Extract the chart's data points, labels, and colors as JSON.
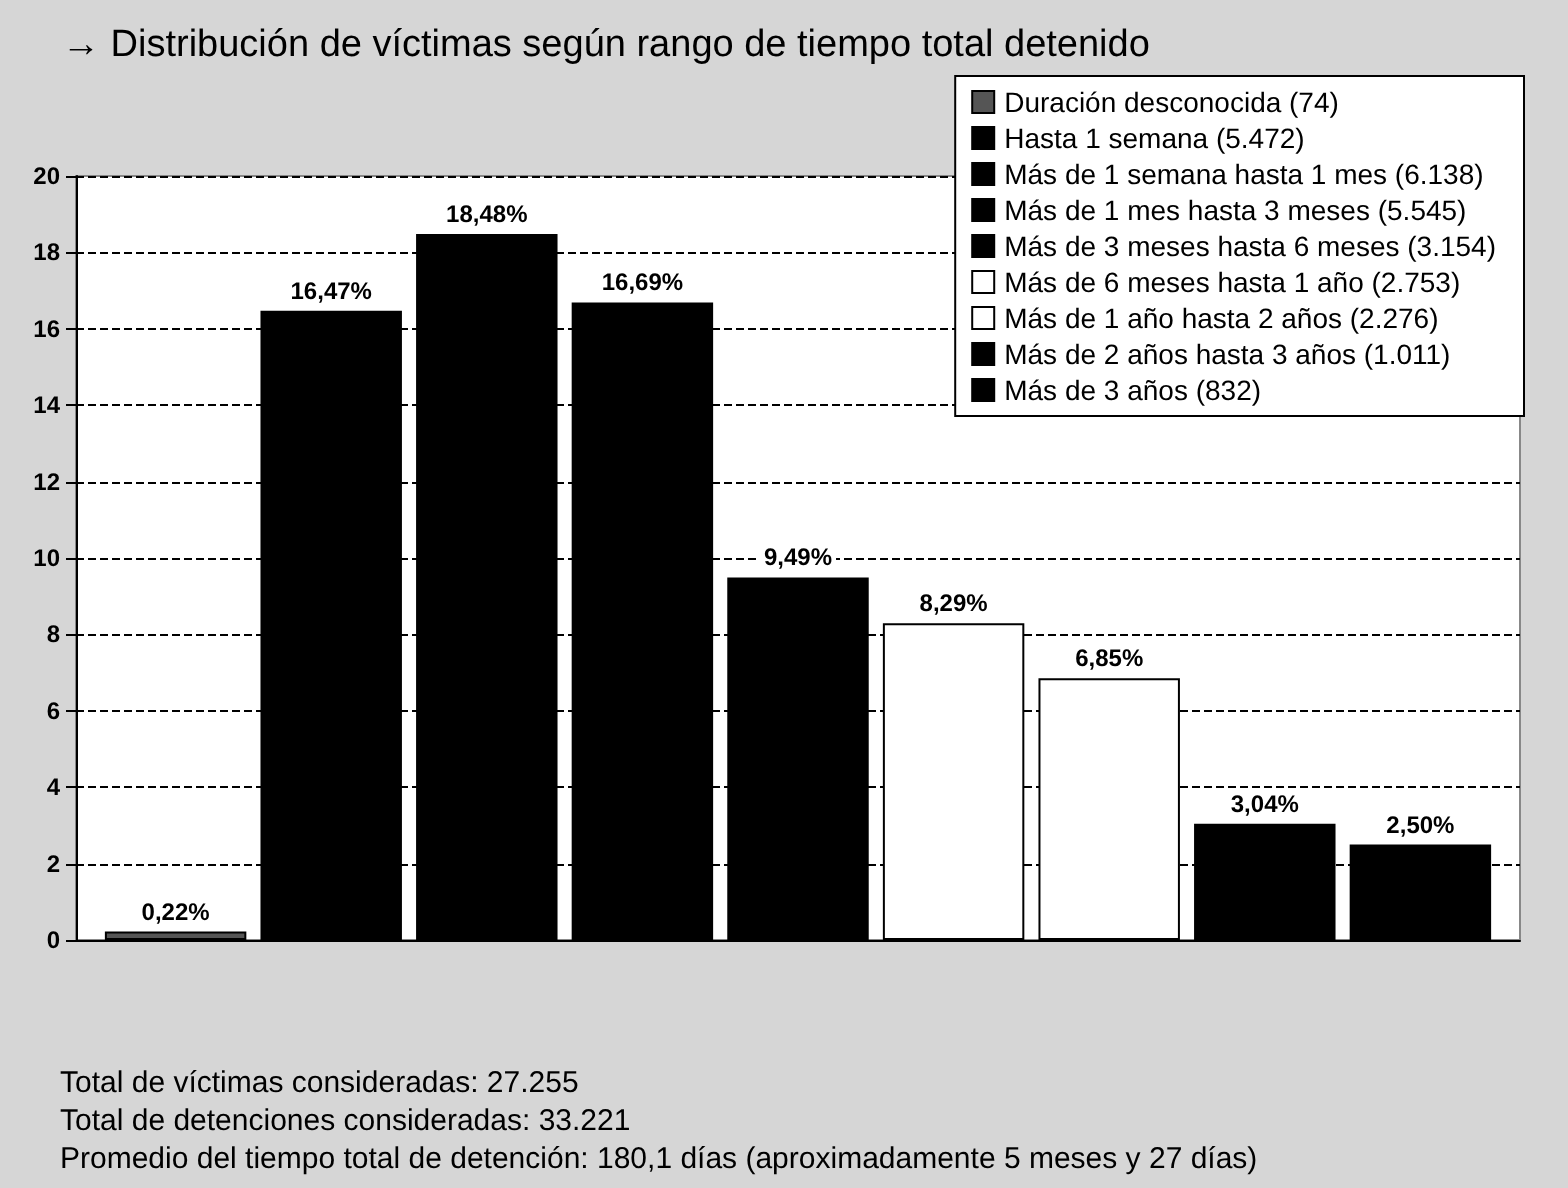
{
  "chart_data": {
    "type": "bar",
    "title": "→ Distribución de víctimas según rango de tiempo total detenido",
    "categories": [
      null
    ],
    "series": [
      {
        "name": "Duración desconocida (74)",
        "color": "#555555",
        "values": [
          0.22
        ],
        "value_labels": [
          "0,22%"
        ]
      },
      {
        "name": "Hasta 1 semana (5.472)",
        "color": "#000000",
        "values": [
          16.47
        ],
        "value_labels": [
          "16,47%"
        ]
      },
      {
        "name": "Más de 1 semana hasta 1 mes (6.138)",
        "color": "#000000",
        "values": [
          18.48
        ],
        "value_labels": [
          "18,48%"
        ]
      },
      {
        "name": "Más de 1 mes hasta 3 meses (5.545)",
        "color": "#000000",
        "values": [
          16.69
        ],
        "value_labels": [
          "16,69%"
        ]
      },
      {
        "name": "Más de 3 meses hasta 6 meses (3.154)",
        "color": "#000000",
        "values": [
          9.49
        ],
        "value_labels": [
          "9,49%"
        ]
      },
      {
        "name": "Más de 6 meses hasta 1 año (2.753)",
        "color": "#ffffff",
        "values": [
          8.29
        ],
        "value_labels": [
          "8,29%"
        ]
      },
      {
        "name": "Más de 1 año hasta 2 años (2.276)",
        "color": "#ffffff",
        "values": [
          6.85
        ],
        "value_labels": [
          "6,85%"
        ]
      },
      {
        "name": "Más de 2 años hasta 3 años (1.011)",
        "color": "#000000",
        "values": [
          3.04
        ],
        "value_labels": [
          "3,04%"
        ]
      },
      {
        "name": "Más de 3 años (832)",
        "color": "#000000",
        "values": [
          2.5
        ],
        "value_labels": [
          "2,50%"
        ]
      }
    ],
    "ylim": [
      0,
      20
    ],
    "yticks": [
      0,
      2,
      4,
      6,
      8,
      10,
      12,
      14,
      16,
      18,
      20
    ],
    "grid": "y",
    "legend": "top right",
    "annotations": [
      "Total de víctimas consideradas: 27.255",
      "Total de detenciones consideradas: 33.221",
      "Promedio del tiempo total de detención: 180,1 días (aproximadamente 5 meses y 27 días)"
    ]
  }
}
